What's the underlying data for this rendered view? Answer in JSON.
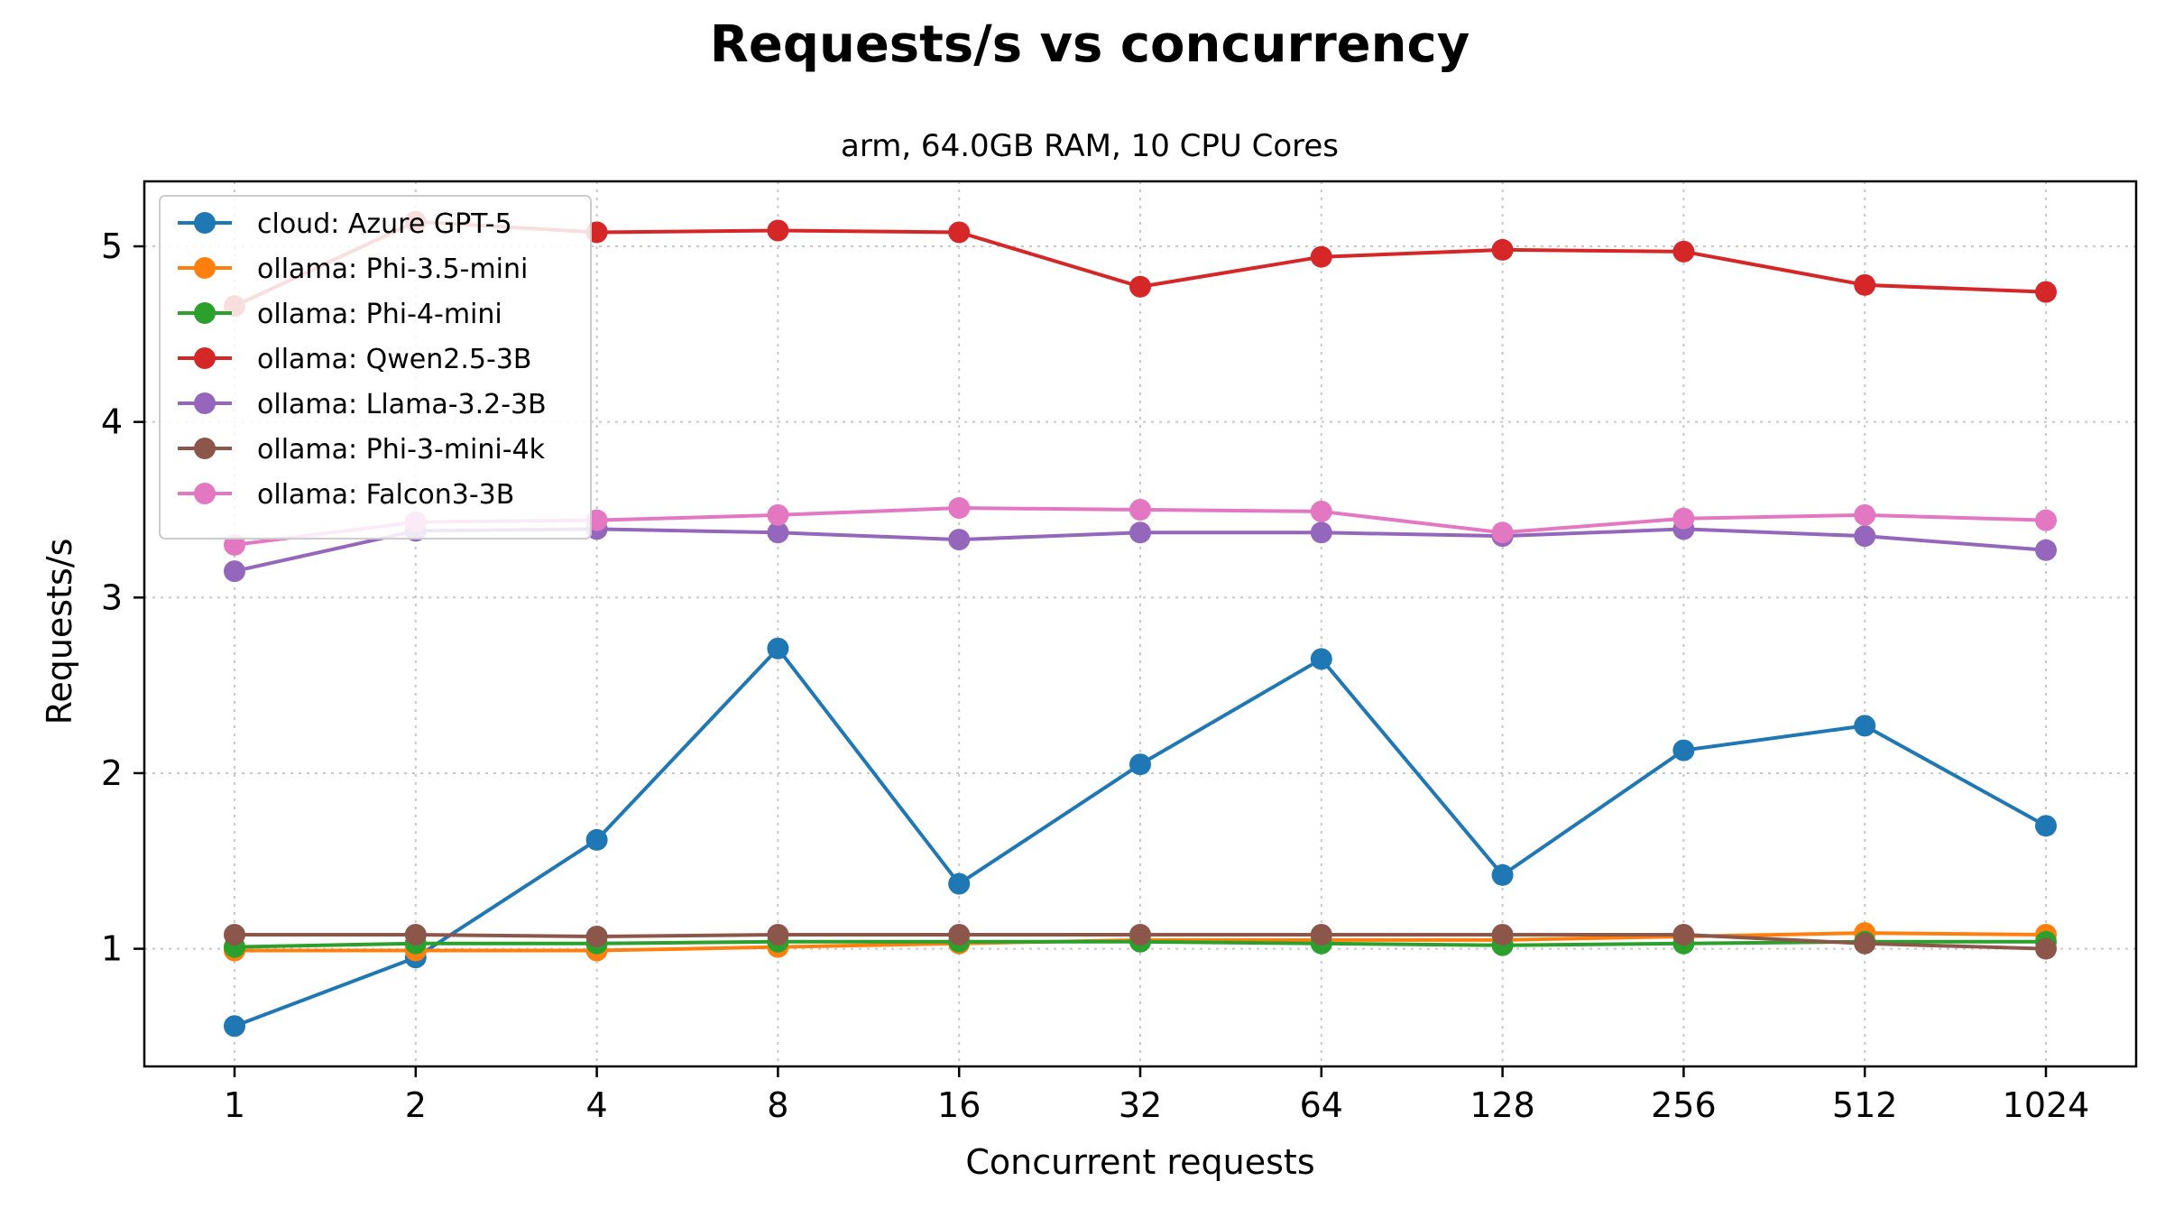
{
  "chart_data": {
    "type": "line",
    "title": "Requests/s vs concurrency",
    "subtitle": "arm, 64.0GB RAM, 10 CPU Cores",
    "xlabel": "Concurrent requests",
    "ylabel": "Requests/s",
    "x": [
      "1",
      "2",
      "4",
      "8",
      "16",
      "32",
      "64",
      "128",
      "256",
      "512",
      "1024"
    ],
    "yticks": [
      "1",
      "2",
      "3",
      "4",
      "5"
    ],
    "ylim": [
      0.33,
      5.37
    ],
    "grid": true,
    "legend_position": "top-left",
    "series": [
      {
        "name": "cloud: Azure GPT-5",
        "color": "#1f77b4",
        "values": [
          0.56,
          0.95,
          1.62,
          2.71,
          1.37,
          2.05,
          2.65,
          1.42,
          2.13,
          2.27,
          1.7
        ]
      },
      {
        "name": "ollama: Phi-3.5-mini",
        "color": "#ff7f0e",
        "values": [
          0.99,
          0.99,
          0.99,
          1.01,
          1.03,
          1.05,
          1.05,
          1.05,
          1.07,
          1.09,
          1.08
        ]
      },
      {
        "name": "ollama: Phi-4-mini",
        "color": "#2ca02c",
        "values": [
          1.01,
          1.03,
          1.03,
          1.04,
          1.04,
          1.04,
          1.03,
          1.02,
          1.03,
          1.04,
          1.04
        ]
      },
      {
        "name": "ollama: Qwen2.5-3B",
        "color": "#d62728",
        "values": [
          4.66,
          5.14,
          5.08,
          5.09,
          5.08,
          4.77,
          4.94,
          4.98,
          4.97,
          4.78,
          4.74
        ]
      },
      {
        "name": "ollama: Llama-3.2-3B",
        "color": "#9467bd",
        "values": [
          3.15,
          3.38,
          3.39,
          3.37,
          3.33,
          3.37,
          3.37,
          3.35,
          3.39,
          3.35,
          3.27
        ]
      },
      {
        "name": "ollama: Phi-3-mini-4k",
        "color": "#8c564b",
        "values": [
          1.08,
          1.08,
          1.07,
          1.08,
          1.08,
          1.08,
          1.08,
          1.08,
          1.08,
          1.03,
          1.0
        ]
      },
      {
        "name": "ollama: Falcon3-3B",
        "color": "#e377c2",
        "values": [
          3.3,
          3.43,
          3.44,
          3.47,
          3.51,
          3.5,
          3.49,
          3.37,
          3.45,
          3.47,
          3.44
        ]
      }
    ]
  }
}
